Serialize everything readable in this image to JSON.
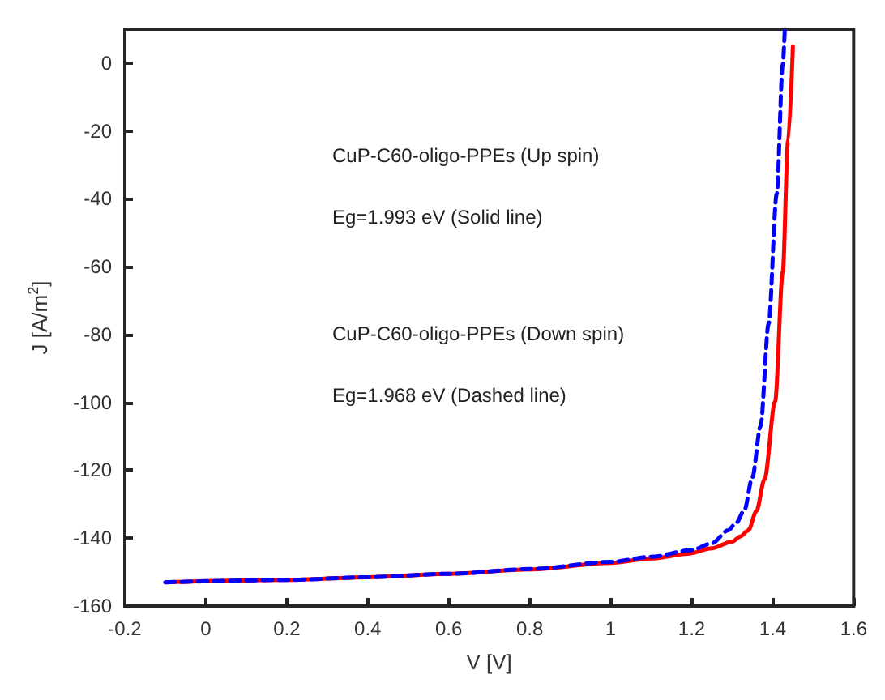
{
  "chart_data": {
    "type": "line",
    "xlabel": "V [V]",
    "ylabel": "J [A/m$^{2}$]",
    "xlim": [
      -0.2,
      1.6
    ],
    "xticks": [
      -0.2,
      0,
      0.2,
      0.4,
      0.6,
      0.8,
      1,
      1.2,
      1.4,
      1.6
    ],
    "ylim": [
      -160,
      10
    ],
    "yticks": [
      -160,
      -140,
      -120,
      -100,
      -80,
      -60,
      -40,
      -20,
      0
    ],
    "grid": false,
    "marker": "none",
    "annotations": [
      "CuP-C60-oligo-PPEs (Up spin)",
      "Eg=1.993 eV (Solid line)",
      "CuP-C60-oligo-PPEs (Down spin)",
      "Eg=1.968 eV (Dashed line)"
    ],
    "series": [
      {
        "color": "#ff0000",
        "line_style": "solid",
        "x": [
          -0.1,
          0.2,
          0.4,
          0.6,
          0.8,
          1.0,
          1.1,
          1.19,
          1.25,
          1.3,
          1.32,
          1.34,
          1.36,
          1.38,
          1.406,
          1.425,
          1.438,
          1.45
        ],
        "values": [
          -153,
          -152.3,
          -151.5,
          -150.5,
          -149.2,
          -147.3,
          -146,
          -144.6,
          -143,
          -141,
          -139.5,
          -137.7,
          -132,
          -122.6,
          -99.7,
          -61.5,
          -23,
          4.9
        ]
      },
      {
        "color": "#0000ff",
        "line_style": "dashed",
        "x": [
          -0.1,
          0.2,
          0.4,
          0.6,
          0.8,
          1.0,
          1.1,
          1.2,
          1.25,
          1.29,
          1.31,
          1.33,
          1.35,
          1.37,
          1.39,
          1.41,
          1.425,
          1.43
        ],
        "values": [
          -153,
          -152.3,
          -151.5,
          -150.5,
          -149.1,
          -147,
          -145.5,
          -143.5,
          -141.5,
          -137.7,
          -135.5,
          -131.8,
          -122,
          -107,
          -76.8,
          -38.6,
          -0.3,
          10
        ]
      }
    ]
  }
}
